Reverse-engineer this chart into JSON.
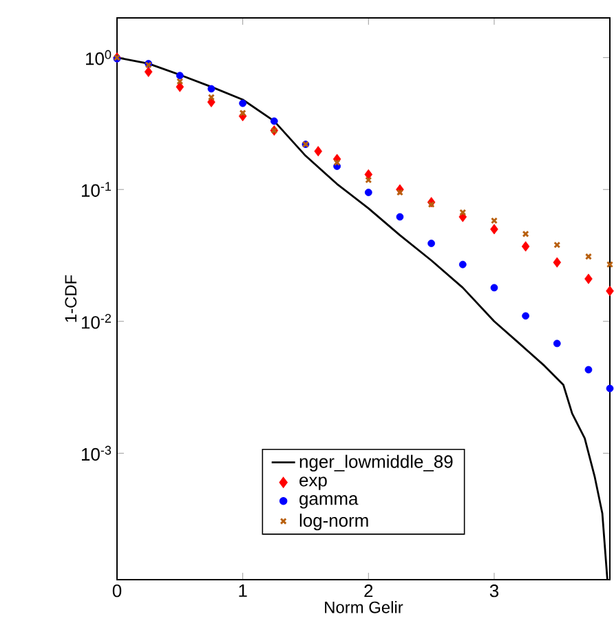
{
  "chart_data": {
    "type": "line",
    "xlabel": "Norm Gelir",
    "ylabel": "1-CDF",
    "log": "y",
    "legend": "bottom",
    "xlim": [
      0,
      3.92
    ],
    "ylim": [
      0.00011,
      2
    ],
    "xticks": [
      0,
      1,
      2,
      3
    ],
    "yticks": [
      {
        "value": 1,
        "label": "10$^{0}$"
      },
      {
        "value": 0.1,
        "label": "10$^{-1}$"
      },
      {
        "value": 0.01,
        "label": "10$^{-2}$"
      },
      {
        "value": 0.001,
        "label": "10$^{-3}$"
      }
    ],
    "series": [
      {
        "name": "nger_lowmiddle_89",
        "color": "#000000",
        "line_style": "solid",
        "marker": "none",
        "x": [
          0,
          0.25,
          0.5,
          0.75,
          1,
          1.25,
          1.5,
          1.75,
          2,
          2.25,
          2.5,
          2.75,
          3,
          3.2,
          3.4,
          3.55,
          3.62,
          3.72,
          3.8,
          3.86,
          3.9
        ],
        "values": [
          1,
          0.9,
          0.74,
          0.6,
          0.48,
          0.33,
          0.18,
          0.11,
          0.072,
          0.045,
          0.029,
          0.018,
          0.01,
          0.0068,
          0.0046,
          0.0033,
          0.002,
          0.0013,
          0.00066,
          0.00035,
          0.00011
        ]
      },
      {
        "name": "exp",
        "type": "scatter",
        "color": "#ff0000",
        "marker": "diamond",
        "x": [
          0,
          0.25,
          0.5,
          0.75,
          1,
          1.25,
          1.6,
          1.75,
          2,
          2.25,
          2.5,
          2.75,
          3,
          3.25,
          3.5,
          3.75,
          3.92
        ],
        "values": [
          1,
          0.78,
          0.6,
          0.46,
          0.36,
          0.28,
          0.195,
          0.17,
          0.13,
          0.1,
          0.08,
          0.062,
          0.05,
          0.037,
          0.028,
          0.021,
          0.017
        ]
      },
      {
        "name": "gamma",
        "type": "scatter",
        "color": "#0000ff",
        "marker": "circle",
        "x": [
          0,
          0.25,
          0.5,
          0.75,
          1,
          1.25,
          1.5,
          1.75,
          2,
          2.25,
          2.5,
          2.75,
          3,
          3.25,
          3.5,
          3.75,
          3.92
        ],
        "values": [
          0.98,
          0.9,
          0.73,
          0.58,
          0.45,
          0.33,
          0.22,
          0.15,
          0.095,
          0.062,
          0.039,
          0.027,
          0.018,
          0.011,
          0.0068,
          0.0043,
          0.0031
        ]
      },
      {
        "name": "log-norm",
        "type": "scatter",
        "color": "#b8600f",
        "marker": "cross",
        "x": [
          0,
          0.25,
          0.5,
          0.75,
          1,
          1.25,
          1.5,
          1.75,
          2,
          2.25,
          2.5,
          2.75,
          3,
          3.25,
          3.5,
          3.75,
          3.92
        ],
        "values": [
          1,
          0.88,
          0.66,
          0.5,
          0.38,
          0.28,
          0.22,
          0.16,
          0.118,
          0.095,
          0.077,
          0.067,
          0.058,
          0.046,
          0.038,
          0.031,
          0.027
        ]
      }
    ]
  }
}
